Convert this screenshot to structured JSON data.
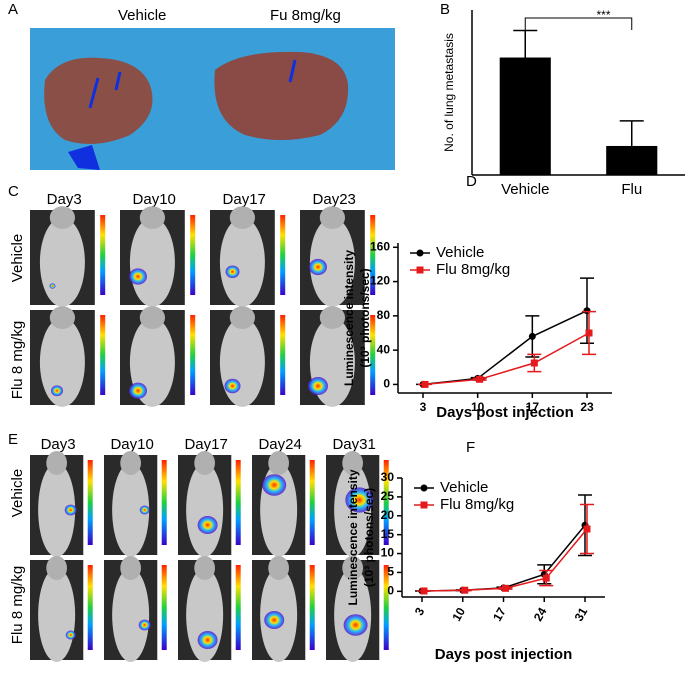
{
  "panel_labels": [
    "A",
    "B",
    "C",
    "D",
    "E",
    "F"
  ],
  "panel_a": {
    "labels": [
      "Vehicle",
      "Fu 8mg/kg"
    ]
  },
  "panel_c": {
    "days": [
      "Day3",
      "Day10",
      "Day17",
      "Day23"
    ],
    "rows": [
      "Vehicle",
      "Flu  8 mg/kg"
    ]
  },
  "panel_e": {
    "days": [
      "Day3",
      "Day10",
      "Day17",
      "Day24",
      "Day31"
    ],
    "rows": [
      "Vehicle",
      "Flu  8 mg/kg"
    ]
  },
  "chart_data": [
    {
      "type": "bar",
      "ylabel": "No. of lung metastasis",
      "categories": [
        "Vehicle",
        "Flu"
      ],
      "values": [
        17.8,
        4.4
      ],
      "errors": [
        4.1,
        3.8
      ],
      "color": "#000000",
      "ylim": [
        0,
        25
      ],
      "annotation": "***"
    },
    {
      "type": "line",
      "ylabel": "Luminescence intensity",
      "ylabel_unit": "(10³ photons/sec)",
      "xlabel": "Days post injection",
      "categories": [
        "3",
        "10",
        "17",
        "23"
      ],
      "ylim": [
        -10,
        165
      ],
      "yticks": [
        0,
        40,
        80,
        120,
        160
      ],
      "series": [
        {
          "name": "Vehicle",
          "color": "#000000",
          "values": [
            0,
            7,
            56,
            86
          ],
          "errors": [
            0,
            1,
            24,
            38
          ]
        },
        {
          "name": "Flu 8mg/kg",
          "color": "#e41a1c",
          "values": [
            0,
            6,
            25,
            60
          ],
          "errors": [
            0,
            1,
            10,
            25
          ]
        }
      ]
    },
    {
      "type": "line",
      "ylabel": "Luminescence intensity",
      "ylabel_unit": "(10³ photons/sec)",
      "xlabel": "Days post injection",
      "categories": [
        "3",
        "10",
        "17",
        "24",
        "31"
      ],
      "ylim": [
        -1.5,
        30
      ],
      "yticks": [
        0,
        5,
        10,
        15,
        20,
        25,
        30
      ],
      "series": [
        {
          "name": "Vehicle",
          "color": "#000000",
          "values": [
            0.1,
            0.3,
            0.9,
            4.5,
            17.5
          ],
          "errors": [
            0,
            0.1,
            0.2,
            2.5,
            8
          ]
        },
        {
          "name": "Flu 8mg/kg",
          "color": "#e41a1c",
          "values": [
            0.1,
            0.3,
            0.8,
            3.5,
            16.5
          ],
          "errors": [
            0,
            0.1,
            0.2,
            2,
            6.5
          ]
        }
      ]
    }
  ]
}
